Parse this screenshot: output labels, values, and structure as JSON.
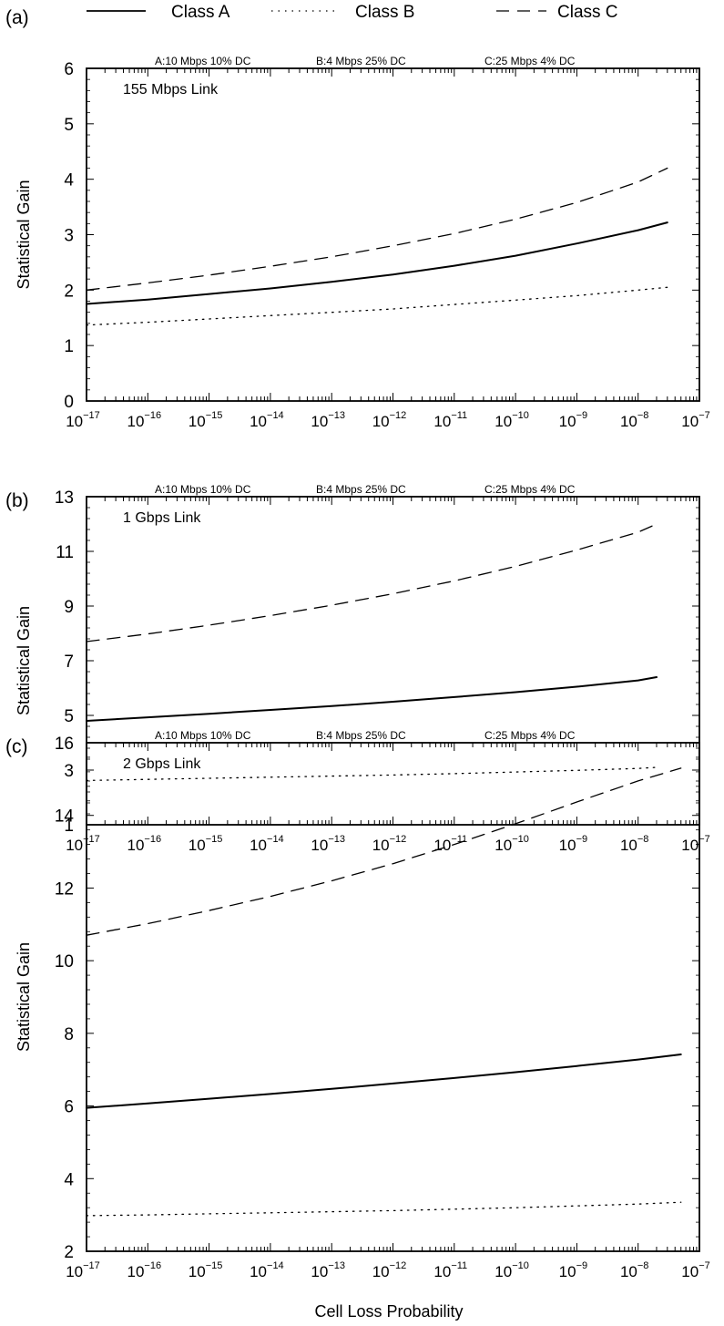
{
  "legend": [
    {
      "name": "Class A",
      "style": "solid",
      "color": "#000000"
    },
    {
      "name": "Class B",
      "style": "dotted",
      "color": "#000000"
    },
    {
      "name": "Class C",
      "style": "dashed",
      "color": "#000000"
    }
  ],
  "xlabel": "Cell Loss Probability",
  "chart_data": [
    {
      "type": "line",
      "panel_label": "(a)",
      "link_label": "155 Mbps Link",
      "annotations": [
        "A:10 Mbps 10% DC",
        "B:4 Mbps 25% DC",
        "C:25 Mbps 4% DC"
      ],
      "ylabel": "Statistical Gain",
      "xscale": "log",
      "xlim": [
        "1e-17",
        "1e-7"
      ],
      "xticks": [
        {
          "base": "10",
          "exp": "−17"
        },
        {
          "base": "10",
          "exp": "−16"
        },
        {
          "base": "10",
          "exp": "−15"
        },
        {
          "base": "10",
          "exp": "−14"
        },
        {
          "base": "10",
          "exp": "−13"
        },
        {
          "base": "10",
          "exp": "−12"
        },
        {
          "base": "10",
          "exp": "−11"
        },
        {
          "base": "10",
          "exp": "−10"
        },
        {
          "base": "10",
          "exp": "−9"
        },
        {
          "base": "10",
          "exp": "−8"
        },
        {
          "base": "10",
          "exp": "−7"
        }
      ],
      "ylim": [
        0,
        6
      ],
      "yticks": [
        "0",
        "1",
        "2",
        "3",
        "4",
        "5",
        "6"
      ],
      "x": [
        "1e-17",
        "1e-16",
        "1e-15",
        "1e-14",
        "1e-13",
        "1e-12",
        "1e-11",
        "1e-10",
        "1e-9",
        "1e-8",
        "3e-8"
      ],
      "series": [
        {
          "name": "Class A",
          "values": [
            1.75,
            1.83,
            1.93,
            2.03,
            2.15,
            2.28,
            2.44,
            2.62,
            2.84,
            3.08,
            3.22
          ]
        },
        {
          "name": "Class B",
          "values": [
            1.37,
            1.42,
            1.48,
            1.54,
            1.6,
            1.66,
            1.74,
            1.82,
            1.9,
            2.0,
            2.05
          ]
        },
        {
          "name": "Class C",
          "values": [
            2.0,
            2.13,
            2.27,
            2.43,
            2.6,
            2.8,
            3.02,
            3.28,
            3.58,
            3.95,
            4.2
          ]
        }
      ]
    },
    {
      "type": "line",
      "panel_label": "(b)",
      "link_label": "1 Gbps Link",
      "annotations": [
        "A:10 Mbps 10% DC",
        "B:4 Mbps 25% DC",
        "C:25 Mbps 4% DC"
      ],
      "ylabel": "Statistical Gain",
      "xscale": "log",
      "xlim": [
        "1e-17",
        "1e-7"
      ],
      "xticks": [
        {
          "base": "10",
          "exp": "−17"
        },
        {
          "base": "10",
          "exp": "−16"
        },
        {
          "base": "10",
          "exp": "−15"
        },
        {
          "base": "10",
          "exp": "−14"
        },
        {
          "base": "10",
          "exp": "−13"
        },
        {
          "base": "10",
          "exp": "−12"
        },
        {
          "base": "10",
          "exp": "−11"
        },
        {
          "base": "10",
          "exp": "−10"
        },
        {
          "base": "10",
          "exp": "−9"
        },
        {
          "base": "10",
          "exp": "−8"
        },
        {
          "base": "10",
          "exp": "−7"
        }
      ],
      "ylim": [
        1,
        13
      ],
      "yticks": [
        "1",
        "3",
        "5",
        "7",
        "9",
        "11",
        "13"
      ],
      "x": [
        "1e-17",
        "1e-16",
        "1e-15",
        "1e-14",
        "1e-13",
        "1e-12",
        "1e-11",
        "1e-10",
        "1e-9",
        "1e-8",
        "2e-8"
      ],
      "series": [
        {
          "name": "Class A",
          "values": [
            4.8,
            4.93,
            5.06,
            5.2,
            5.34,
            5.5,
            5.67,
            5.85,
            6.05,
            6.28,
            6.4
          ]
        },
        {
          "name": "Class B",
          "values": [
            2.62,
            2.66,
            2.7,
            2.74,
            2.78,
            2.82,
            2.87,
            2.93,
            2.99,
            3.06,
            3.1
          ]
        },
        {
          "name": "Class C",
          "values": [
            7.7,
            7.98,
            8.3,
            8.65,
            9.03,
            9.45,
            9.92,
            10.45,
            11.05,
            11.7,
            12.0
          ]
        }
      ]
    },
    {
      "type": "line",
      "panel_label": "(c)",
      "link_label": "2 Gbps Link",
      "annotations": [
        "A:10 Mbps 10% DC",
        "B:4 Mbps 25% DC",
        "C:25 Mbps 4% DC"
      ],
      "ylabel": "Statistical Gain",
      "xlabel": "Cell Loss Probability",
      "xscale": "log",
      "xlim": [
        "1e-17",
        "1e-7"
      ],
      "xticks": [
        {
          "base": "10",
          "exp": "−17"
        },
        {
          "base": "10",
          "exp": "−16"
        },
        {
          "base": "10",
          "exp": "−15"
        },
        {
          "base": "10",
          "exp": "−14"
        },
        {
          "base": "10",
          "exp": "−13"
        },
        {
          "base": "10",
          "exp": "−12"
        },
        {
          "base": "10",
          "exp": "−11"
        },
        {
          "base": "10",
          "exp": "−10"
        },
        {
          "base": "10",
          "exp": "−9"
        },
        {
          "base": "10",
          "exp": "−8"
        },
        {
          "base": "10",
          "exp": "−7"
        }
      ],
      "ylim": [
        2,
        16
      ],
      "yticks": [
        "2",
        "4",
        "6",
        "8",
        "10",
        "12",
        "14",
        "16"
      ],
      "x": [
        "1e-17",
        "1e-16",
        "1e-15",
        "1e-14",
        "1e-13",
        "1e-12",
        "1e-11",
        "1e-10",
        "1e-9",
        "1e-8",
        "5e-8"
      ],
      "series": [
        {
          "name": "Class A",
          "values": [
            5.95,
            6.07,
            6.2,
            6.33,
            6.47,
            6.62,
            6.77,
            6.93,
            7.1,
            7.28,
            7.42
          ]
        },
        {
          "name": "Class B",
          "values": [
            2.98,
            3.0,
            3.03,
            3.06,
            3.09,
            3.12,
            3.16,
            3.2,
            3.25,
            3.3,
            3.35
          ]
        },
        {
          "name": "Class C",
          "values": [
            10.7,
            11.02,
            11.38,
            11.77,
            12.2,
            12.67,
            13.2,
            13.77,
            14.37,
            14.95,
            15.3
          ]
        }
      ]
    }
  ]
}
